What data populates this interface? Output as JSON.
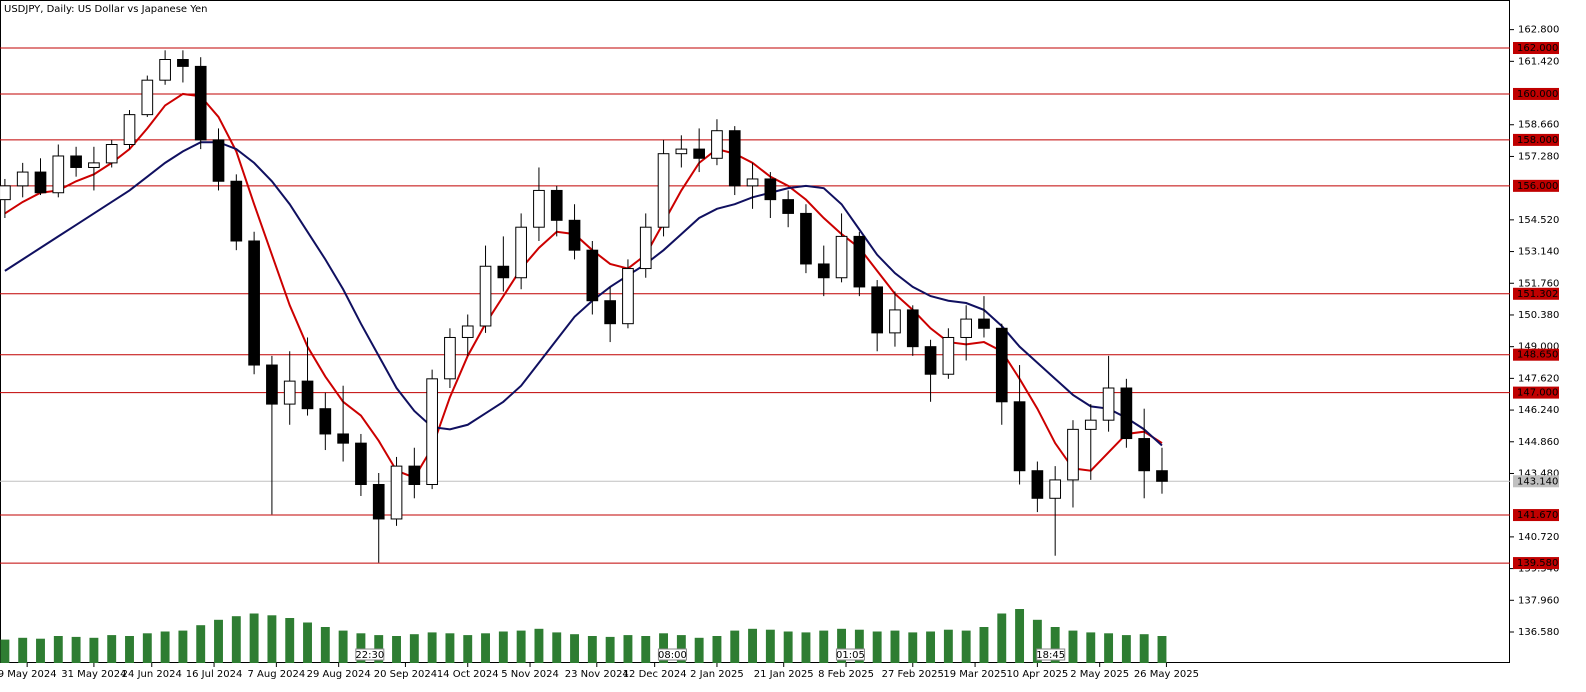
{
  "chart_data": {
    "type": "candlestick",
    "title": "USDJPY, Daily:  US Dollar vs Japanese Yen",
    "xlim": [
      -1.1,
      338.2
    ],
    "ylim": [
      135.23,
      164.09
    ],
    "xticks": [
      {
        "value": 5,
        "label": "9 May 2024"
      },
      {
        "value": 20,
        "label": "31 May 2024"
      },
      {
        "value": 33,
        "label": "24 Jun 2024"
      },
      {
        "value": 47,
        "label": "16 Jul 2024"
      },
      {
        "value": 61,
        "label": "7 Aug 2024"
      },
      {
        "value": 75,
        "label": "29 Aug 2024"
      },
      {
        "value": 90,
        "label": "20 Sep 2024"
      },
      {
        "value": 104,
        "label": "14 Oct 2024"
      },
      {
        "value": 118,
        "label": "5 Nov 2024"
      },
      {
        "value": 133,
        "label": "23 Nov 2024"
      },
      {
        "value": 146,
        "label": "12 Dec 2024"
      },
      {
        "value": 160,
        "label": "2 Jan 2025"
      },
      {
        "value": 175,
        "label": "21 Jan 2025"
      },
      {
        "value": 189,
        "label": "8 Feb 2025"
      },
      {
        "value": 204,
        "label": "27 Feb 2025"
      },
      {
        "value": 218,
        "label": "19 Mar 2025"
      },
      {
        "value": 232,
        "label": "10 Apr 2025"
      },
      {
        "value": 246,
        "label": "2 May 2025"
      },
      {
        "value": 261,
        "label": "26 May 2025"
      }
    ],
    "yticks": [
      {
        "value": 162.8,
        "label": "162.800"
      },
      {
        "value": 161.42,
        "label": "161.420"
      },
      {
        "value": 158.66,
        "label": "158.660"
      },
      {
        "value": 157.28,
        "label": "157.280"
      },
      {
        "value": 154.52,
        "label": "154.520"
      },
      {
        "value": 153.14,
        "label": "153.140"
      },
      {
        "value": 151.76,
        "label": "151.760"
      },
      {
        "value": 150.38,
        "label": "150.380"
      },
      {
        "value": 149,
        "label": "149.000"
      },
      {
        "value": 147.62,
        "label": "147.620"
      },
      {
        "value": 146.24,
        "label": "146.240"
      },
      {
        "value": 144.86,
        "label": "144.860"
      },
      {
        "value": 143.48,
        "label": "143.480"
      },
      {
        "value": 140.72,
        "label": "140.720"
      },
      {
        "value": 139.34,
        "label": "139.340"
      },
      {
        "value": 137.96,
        "label": "137.960"
      },
      {
        "value": 136.58,
        "label": "136.580"
      }
    ],
    "levels": [
      {
        "value": 162,
        "label": "162.000"
      },
      {
        "value": 160,
        "label": "160.000"
      },
      {
        "value": 158,
        "label": "158.000"
      },
      {
        "value": 156,
        "label": "156.000"
      },
      {
        "value": 151.302,
        "label": "151.302"
      },
      {
        "value": 148.65,
        "label": "148.650"
      },
      {
        "value": 147,
        "label": "147.000"
      },
      {
        "value": 141.67,
        "label": "141.670"
      },
      {
        "value": 139.58,
        "label": "139.580"
      }
    ],
    "level_color": "#c00000",
    "current_price": {
      "value": 143.14,
      "label": "143.140"
    },
    "x": [
      0,
      4,
      8,
      12,
      16,
      20,
      24,
      28,
      32,
      36,
      40,
      44,
      48,
      52,
      56,
      60,
      64,
      68,
      72,
      76,
      80,
      84,
      88,
      92,
      96,
      100,
      104,
      108,
      112,
      116,
      120,
      124,
      128,
      132,
      136,
      140,
      144,
      148,
      152,
      156,
      160,
      164,
      168,
      172,
      176,
      180,
      184,
      188,
      192,
      196,
      200,
      204,
      208,
      212,
      216,
      220,
      224,
      228,
      232,
      236,
      240,
      244,
      248,
      252,
      256,
      260
    ],
    "ohlc": [
      [
        155.4,
        156.3,
        154.6,
        156.0
      ],
      [
        156.0,
        157.0,
        155.5,
        156.6
      ],
      [
        156.6,
        157.2,
        155.6,
        155.7
      ],
      [
        155.7,
        157.8,
        155.5,
        157.3
      ],
      [
        157.3,
        157.7,
        156.4,
        156.8
      ],
      [
        156.8,
        157.7,
        155.8,
        157.0
      ],
      [
        157.0,
        158.0,
        156.8,
        157.8
      ],
      [
        157.8,
        159.3,
        157.6,
        159.1
      ],
      [
        159.1,
        160.8,
        159.0,
        160.6
      ],
      [
        160.6,
        161.9,
        160.4,
        161.5
      ],
      [
        161.5,
        161.9,
        160.5,
        161.2
      ],
      [
        161.2,
        161.6,
        157.6,
        158.0
      ],
      [
        158.0,
        158.5,
        155.8,
        156.2
      ],
      [
        156.2,
        156.5,
        153.2,
        153.6
      ],
      [
        153.6,
        154.0,
        147.8,
        148.2
      ],
      [
        148.2,
        148.6,
        141.7,
        146.5
      ],
      [
        146.5,
        148.8,
        145.6,
        147.5
      ],
      [
        147.5,
        149.4,
        146.0,
        146.3
      ],
      [
        146.3,
        147.0,
        144.5,
        145.2
      ],
      [
        145.2,
        147.3,
        144.0,
        144.8
      ],
      [
        144.8,
        145.2,
        142.5,
        143.0
      ],
      [
        143.0,
        143.5,
        139.6,
        141.5
      ],
      [
        141.5,
        144.2,
        141.2,
        143.8
      ],
      [
        143.8,
        144.6,
        142.4,
        143.0
      ],
      [
        143.0,
        148.0,
        142.8,
        147.6
      ],
      [
        147.6,
        149.8,
        147.2,
        149.4
      ],
      [
        149.4,
        150.4,
        148.6,
        149.9
      ],
      [
        149.9,
        153.4,
        149.6,
        152.5
      ],
      [
        152.5,
        153.8,
        151.4,
        152.0
      ],
      [
        152.0,
        154.8,
        151.5,
        154.2
      ],
      [
        154.2,
        156.8,
        153.6,
        155.8
      ],
      [
        155.8,
        156.0,
        153.8,
        154.5
      ],
      [
        154.5,
        155.2,
        152.8,
        153.2
      ],
      [
        153.2,
        153.6,
        150.4,
        151.0
      ],
      [
        151.0,
        151.6,
        149.2,
        150.0
      ],
      [
        150.0,
        152.8,
        149.8,
        152.4
      ],
      [
        152.4,
        154.8,
        152.0,
        154.2
      ],
      [
        154.2,
        158.0,
        153.8,
        157.4
      ],
      [
        157.4,
        158.2,
        156.8,
        157.6
      ],
      [
        157.6,
        158.5,
        156.6,
        157.2
      ],
      [
        157.2,
        158.9,
        156.9,
        158.4
      ],
      [
        158.4,
        158.6,
        155.6,
        156.0
      ],
      [
        156.0,
        157.0,
        155.0,
        156.3
      ],
      [
        156.3,
        156.6,
        154.6,
        155.4
      ],
      [
        155.4,
        155.8,
        154.2,
        154.8
      ],
      [
        154.8,
        155.2,
        152.2,
        152.6
      ],
      [
        152.6,
        153.4,
        151.2,
        152.0
      ],
      [
        152.0,
        154.8,
        151.8,
        153.8
      ],
      [
        153.8,
        154.0,
        151.2,
        151.6
      ],
      [
        151.6,
        151.9,
        148.8,
        149.6
      ],
      [
        149.6,
        151.4,
        149.0,
        150.6
      ],
      [
        150.6,
        150.8,
        148.6,
        149.0
      ],
      [
        149.0,
        149.3,
        146.6,
        147.8
      ],
      [
        147.8,
        149.8,
        147.6,
        149.4
      ],
      [
        149.4,
        150.8,
        148.4,
        150.2
      ],
      [
        150.2,
        151.2,
        149.4,
        149.8
      ],
      [
        149.8,
        150.0,
        145.6,
        146.6
      ],
      [
        146.6,
        148.2,
        143.0,
        143.6
      ],
      [
        143.6,
        144.0,
        141.8,
        142.4
      ],
      [
        142.4,
        143.8,
        139.9,
        143.2
      ],
      [
        143.2,
        145.8,
        142.0,
        145.4
      ],
      [
        145.4,
        146.5,
        143.2,
        145.8
      ],
      [
        145.8,
        148.6,
        145.3,
        147.2
      ],
      [
        147.2,
        147.6,
        144.6,
        145.0
      ],
      [
        145.0,
        146.3,
        142.4,
        143.6
      ],
      [
        143.6,
        144.6,
        142.6,
        143.14
      ]
    ],
    "volume": [
      26,
      28,
      27,
      30,
      29,
      28,
      31,
      30,
      33,
      35,
      36,
      42,
      48,
      52,
      55,
      53,
      50,
      45,
      40,
      36,
      33,
      31,
      30,
      32,
      34,
      33,
      31,
      33,
      35,
      36,
      38,
      34,
      32,
      30,
      29,
      31,
      30,
      33,
      31,
      28,
      30,
      36,
      38,
      37,
      35,
      34,
      36,
      38,
      37,
      35,
      36,
      34,
      35,
      37,
      36,
      40,
      55,
      60,
      48,
      40,
      36,
      34,
      33,
      31,
      32,
      30
    ],
    "volume_lim": [
      0,
      100
    ],
    "volume_color": "#2e7d32",
    "series": [
      {
        "color": "#cc0000",
        "values": [
          154.8,
          155.3,
          155.7,
          155.8,
          156.2,
          156.5,
          157.0,
          157.6,
          158.5,
          159.5,
          160.0,
          159.9,
          159.0,
          157.5,
          155.2,
          153.0,
          150.8,
          149.0,
          147.7,
          146.6,
          146.0,
          144.9,
          143.6,
          143.3,
          144.6,
          146.8,
          148.6,
          150.0,
          151.2,
          152.4,
          153.3,
          154.0,
          153.9,
          153.2,
          152.6,
          152.4,
          153.0,
          154.4,
          155.8,
          157.0,
          157.6,
          157.4,
          157.0,
          156.4,
          156.0,
          155.4,
          154.6,
          153.9,
          153.3,
          152.3,
          151.3,
          150.6,
          149.8,
          149.2,
          149.1,
          149.2,
          148.8,
          147.6,
          146.3,
          144.8,
          143.7,
          143.6,
          144.4,
          145.2,
          145.3,
          144.8
        ]
      },
      {
        "color": "#101060",
        "values": [
          152.3,
          152.8,
          153.3,
          153.8,
          154.3,
          154.8,
          155.3,
          155.8,
          156.4,
          157.0,
          157.5,
          157.9,
          157.9,
          157.6,
          157.0,
          156.2,
          155.2,
          154.0,
          152.8,
          151.5,
          150.0,
          148.6,
          147.2,
          146.2,
          145.5,
          145.4,
          145.6,
          146.1,
          146.6,
          147.3,
          148.3,
          149.3,
          150.3,
          151.0,
          151.6,
          152.1,
          152.6,
          153.2,
          153.9,
          154.6,
          155.0,
          155.2,
          155.5,
          155.7,
          155.9,
          156.0,
          155.9,
          155.2,
          154.1,
          153.0,
          152.2,
          151.6,
          151.2,
          151.0,
          150.9,
          150.6,
          149.9,
          149.0,
          148.3,
          147.6,
          146.9,
          146.4,
          146.3,
          145.9,
          145.4,
          144.7
        ]
      }
    ],
    "events": [
      {
        "x": 82,
        "label": "22:30"
      },
      {
        "x": 150,
        "label": "08:00"
      },
      {
        "x": 190,
        "label": "01:05"
      },
      {
        "x": 235,
        "label": "18:45"
      }
    ]
  }
}
